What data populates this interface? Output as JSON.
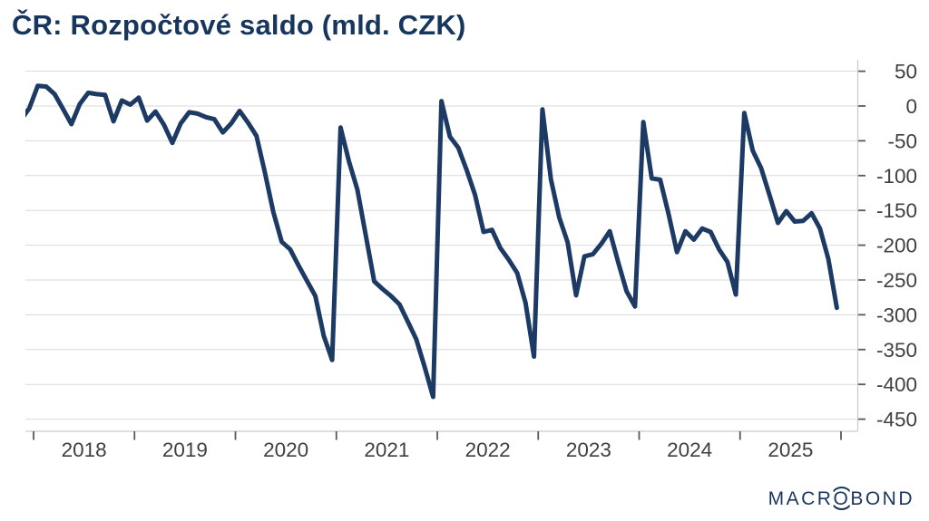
{
  "title": "ČR: Rozpočtové saldo (mld. CZK)",
  "logo": {
    "name": "Macrobond",
    "prefix": "MACR",
    "circled_letter": "O",
    "suffix": "BOND"
  },
  "colors": {
    "background": "#ffffff",
    "title": "#17365d",
    "line": "#1c3a63",
    "grid": "#d9d9d9",
    "axis_line": "#c9c9c9",
    "tick": "#595959",
    "tick_label": "#404040",
    "logo": "#1b365d"
  },
  "chart_data": {
    "type": "line",
    "title": "ČR: Rozpočtové saldo (mld. CZK)",
    "xlabel": "",
    "ylabel": "mld. CZK",
    "grid": true,
    "legend_position": "none",
    "x_tick_years": [
      "2018",
      "2019",
      "2020",
      "2021",
      "2022",
      "2023",
      "2024",
      "2025"
    ],
    "y_ticks": [
      50,
      0,
      -50,
      -100,
      -150,
      -200,
      -250,
      -300,
      -350,
      -400,
      -450
    ],
    "ylim": [
      -465,
      66
    ],
    "series": [
      {
        "name": "ČR rozpočtové saldo (mld. CZK)",
        "frequency": "monthly",
        "start": "2017-11",
        "values": [
          -20,
          -3,
          29,
          28,
          17,
          -4,
          -26,
          3,
          19,
          17,
          16,
          -22,
          8,
          2,
          12,
          -21,
          -8,
          -27,
          -53,
          -25,
          -9,
          -11,
          -16,
          -19,
          -38,
          -25,
          -7,
          -24,
          -43,
          -95,
          -152,
          -195,
          -206,
          -229,
          -251,
          -273,
          -330,
          -365,
          -31,
          -80,
          -120,
          -186,
          -252,
          -263,
          -273,
          -285,
          -310,
          -335,
          -375,
          -418,
          7,
          -44,
          -60,
          -92,
          -128,
          -181,
          -178,
          -204,
          -221,
          -240,
          -283,
          -360,
          -5,
          -105,
          -160,
          -196,
          -272,
          -216,
          -213,
          -198,
          -180,
          -224,
          -266,
          -288,
          -23,
          -104,
          -106,
          -155,
          -210,
          -180,
          -192,
          -176,
          -181,
          -206,
          -224,
          -271,
          -10,
          -64,
          -89,
          -128,
          -168,
          -151,
          -166,
          -165,
          -154,
          -176,
          -220,
          -290
        ]
      }
    ]
  }
}
